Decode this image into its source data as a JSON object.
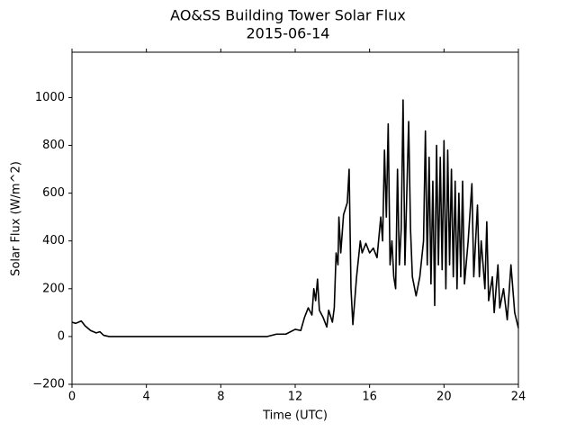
{
  "chart_data": {
    "type": "line",
    "title": "AO&SS Building Tower Solar Flux",
    "subtitle": "2015-06-14",
    "x_label": "Time (UTC)",
    "y_label": "Solar Flux (W/m^2)",
    "xlim": [
      0,
      24
    ],
    "xticks": [
      0,
      4,
      8,
      12,
      16,
      20,
      24
    ],
    "ylim": [
      -200,
      1190
    ],
    "yticks": [
      {
        "value": -200,
        "label": "−200"
      },
      0,
      200,
      400,
      600,
      800,
      1000
    ],
    "grid": false,
    "series": [
      {
        "name": "Solar Flux",
        "color": "#000000",
        "x": [
          0,
          0.2,
          0.5,
          0.7,
          1.0,
          1.3,
          1.5,
          1.7,
          2.0,
          4,
          8,
          10.5,
          11,
          11.5,
          12,
          12.3,
          12.5,
          12.7,
          12.9,
          13.0,
          13.1,
          13.2,
          13.3,
          13.5,
          13.7,
          13.8,
          14.0,
          14.1,
          14.2,
          14.3,
          14.35,
          14.45,
          14.6,
          14.8,
          14.9,
          15.0,
          15.1,
          15.3,
          15.5,
          15.6,
          15.8,
          16.0,
          16.2,
          16.4,
          16.6,
          16.7,
          16.8,
          16.9,
          17.0,
          17.1,
          17.2,
          17.3,
          17.4,
          17.5,
          17.6,
          17.7,
          17.8,
          17.9,
          18.1,
          18.2,
          18.3,
          18.5,
          18.7,
          18.9,
          19.0,
          19.1,
          19.2,
          19.3,
          19.4,
          19.5,
          19.6,
          19.7,
          19.8,
          19.9,
          20.0,
          20.1,
          20.2,
          20.3,
          20.4,
          20.5,
          20.6,
          20.7,
          20.8,
          20.9,
          21.0,
          21.1,
          21.3,
          21.5,
          21.6,
          21.8,
          21.9,
          22.0,
          22.2,
          22.3,
          22.4,
          22.6,
          22.7,
          22.9,
          23.0,
          23.2,
          23.4,
          23.6,
          23.8,
          24
        ],
        "values": [
          60,
          55,
          65,
          45,
          25,
          15,
          20,
          5,
          0,
          0,
          0,
          0,
          10,
          10,
          30,
          25,
          80,
          120,
          90,
          200,
          150,
          240,
          110,
          80,
          40,
          110,
          60,
          120,
          350,
          300,
          500,
          350,
          510,
          560,
          700,
          200,
          50,
          250,
          400,
          350,
          390,
          350,
          370,
          330,
          500,
          400,
          780,
          500,
          890,
          300,
          400,
          250,
          200,
          700,
          300,
          450,
          990,
          300,
          900,
          450,
          250,
          170,
          250,
          400,
          860,
          300,
          750,
          220,
          650,
          130,
          800,
          300,
          750,
          280,
          820,
          200,
          780,
          300,
          700,
          250,
          650,
          200,
          600,
          250,
          650,
          220,
          400,
          640,
          250,
          550,
          250,
          400,
          200,
          480,
          150,
          250,
          100,
          300,
          120,
          200,
          70,
          300,
          100,
          35
        ]
      }
    ]
  }
}
